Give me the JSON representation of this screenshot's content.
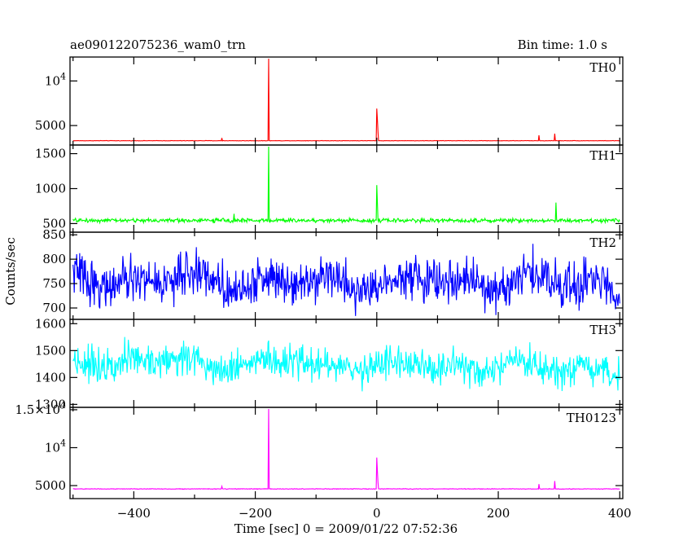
{
  "header": {
    "title": "ae090122075236_wam0_trn",
    "bin_time": "Bin time: 1.0 s"
  },
  "xlabel": "Time [sec] 0 = 2009/01/22 07:52:36",
  "ylabel": "Counts/sec",
  "chart_data": {
    "type": "line",
    "title": "ae090122075236_wam0_trn",
    "subtitle": "Bin time: 1.0 s",
    "xlabel": "Time [sec] 0 = 2009/01/22 07:52:36",
    "ylabel": "Counts/sec",
    "xlim": [
      -505,
      405
    ],
    "x_ticks": [
      {
        "value": -400,
        "label": "−400"
      },
      {
        "value": -200,
        "label": "−200"
      },
      {
        "value": 0,
        "label": "0"
      },
      {
        "value": 200,
        "label": "200"
      },
      {
        "value": 400,
        "label": "400"
      }
    ],
    "x_start": -500,
    "x_end": 400,
    "x_step": 1,
    "panels": [
      {
        "name": "TH0",
        "color": "#ff0000",
        "ylim": [
          3000,
          12500
        ],
        "y_ticks": [
          {
            "value": 5000,
            "label": "5000",
            "sup": ""
          },
          {
            "value": 10000,
            "label": "10",
            "sup": "4"
          }
        ],
        "baseline": 3300,
        "noise": 30,
        "trend": 0,
        "wiggle": 0,
        "spikes": [
          {
            "x": -178,
            "value": 12500
          },
          {
            "x": 0,
            "value": 6900
          },
          {
            "x": 1,
            "value": 5600
          },
          {
            "x": 2,
            "value": 4300
          },
          {
            "x": -255,
            "value": 3600
          },
          {
            "x": 267,
            "value": 3900
          },
          {
            "x": 293,
            "value": 4100
          }
        ]
      },
      {
        "name": "TH1",
        "color": "#00ff00",
        "ylim": [
          400,
          1600
        ],
        "y_ticks": [
          {
            "value": 500,
            "label": "500",
            "sup": ""
          },
          {
            "value": 1000,
            "label": "1000",
            "sup": ""
          },
          {
            "value": 1500,
            "label": "1500",
            "sup": ""
          }
        ],
        "baseline": 545,
        "noise": 42,
        "trend": 0,
        "wiggle": 0,
        "spikes": [
          {
            "x": -178,
            "value": 1600
          },
          {
            "x": 0,
            "value": 1050
          },
          {
            "x": 1,
            "value": 780
          },
          {
            "x": 295,
            "value": 800
          },
          {
            "x": -235,
            "value": 640
          }
        ]
      },
      {
        "name": "TH2",
        "color": "#0000ff",
        "ylim": [
          680,
          852
        ],
        "y_ticks": [
          {
            "value": 700,
            "label": "700",
            "sup": ""
          },
          {
            "value": 750,
            "label": "750",
            "sup": ""
          },
          {
            "value": 800,
            "label": "800",
            "sup": ""
          },
          {
            "value": 850,
            "label": "850",
            "sup": ""
          }
        ],
        "baseline": 758,
        "noise": 66,
        "trend": -6,
        "wiggle": 20,
        "spikes": []
      },
      {
        "name": "TH3",
        "color": "#00ffff",
        "ylim": [
          1295,
          1610
        ],
        "y_ticks": [
          {
            "value": 1300,
            "label": "1300",
            "sup": ""
          },
          {
            "value": 1400,
            "label": "1400",
            "sup": ""
          },
          {
            "value": 1500,
            "label": "1500",
            "sup": ""
          },
          {
            "value": 1600,
            "label": "1600",
            "sup": ""
          }
        ],
        "baseline": 1468,
        "noise": 95,
        "trend": -45,
        "wiggle": 22,
        "spikes": []
      },
      {
        "name": "TH0123",
        "color": "#ff00ff",
        "ylim": [
          3500,
          15100
        ],
        "y_ticks": [
          {
            "value": 5000,
            "label": "5000",
            "sup": ""
          },
          {
            "value": 10000,
            "label": "10",
            "sup": "4"
          },
          {
            "value": 15000,
            "label": "1.5×10",
            "sup": "4"
          }
        ],
        "baseline": 4560,
        "noise": 60,
        "trend": 0,
        "wiggle": 0,
        "spikes": [
          {
            "x": -178,
            "value": 15100
          },
          {
            "x": 0,
            "value": 8700
          },
          {
            "x": 1,
            "value": 6800
          },
          {
            "x": 2,
            "value": 5400
          },
          {
            "x": -255,
            "value": 4900
          },
          {
            "x": 267,
            "value": 5200
          },
          {
            "x": 293,
            "value": 5600
          }
        ]
      }
    ],
    "grid": false,
    "legend": "none"
  }
}
